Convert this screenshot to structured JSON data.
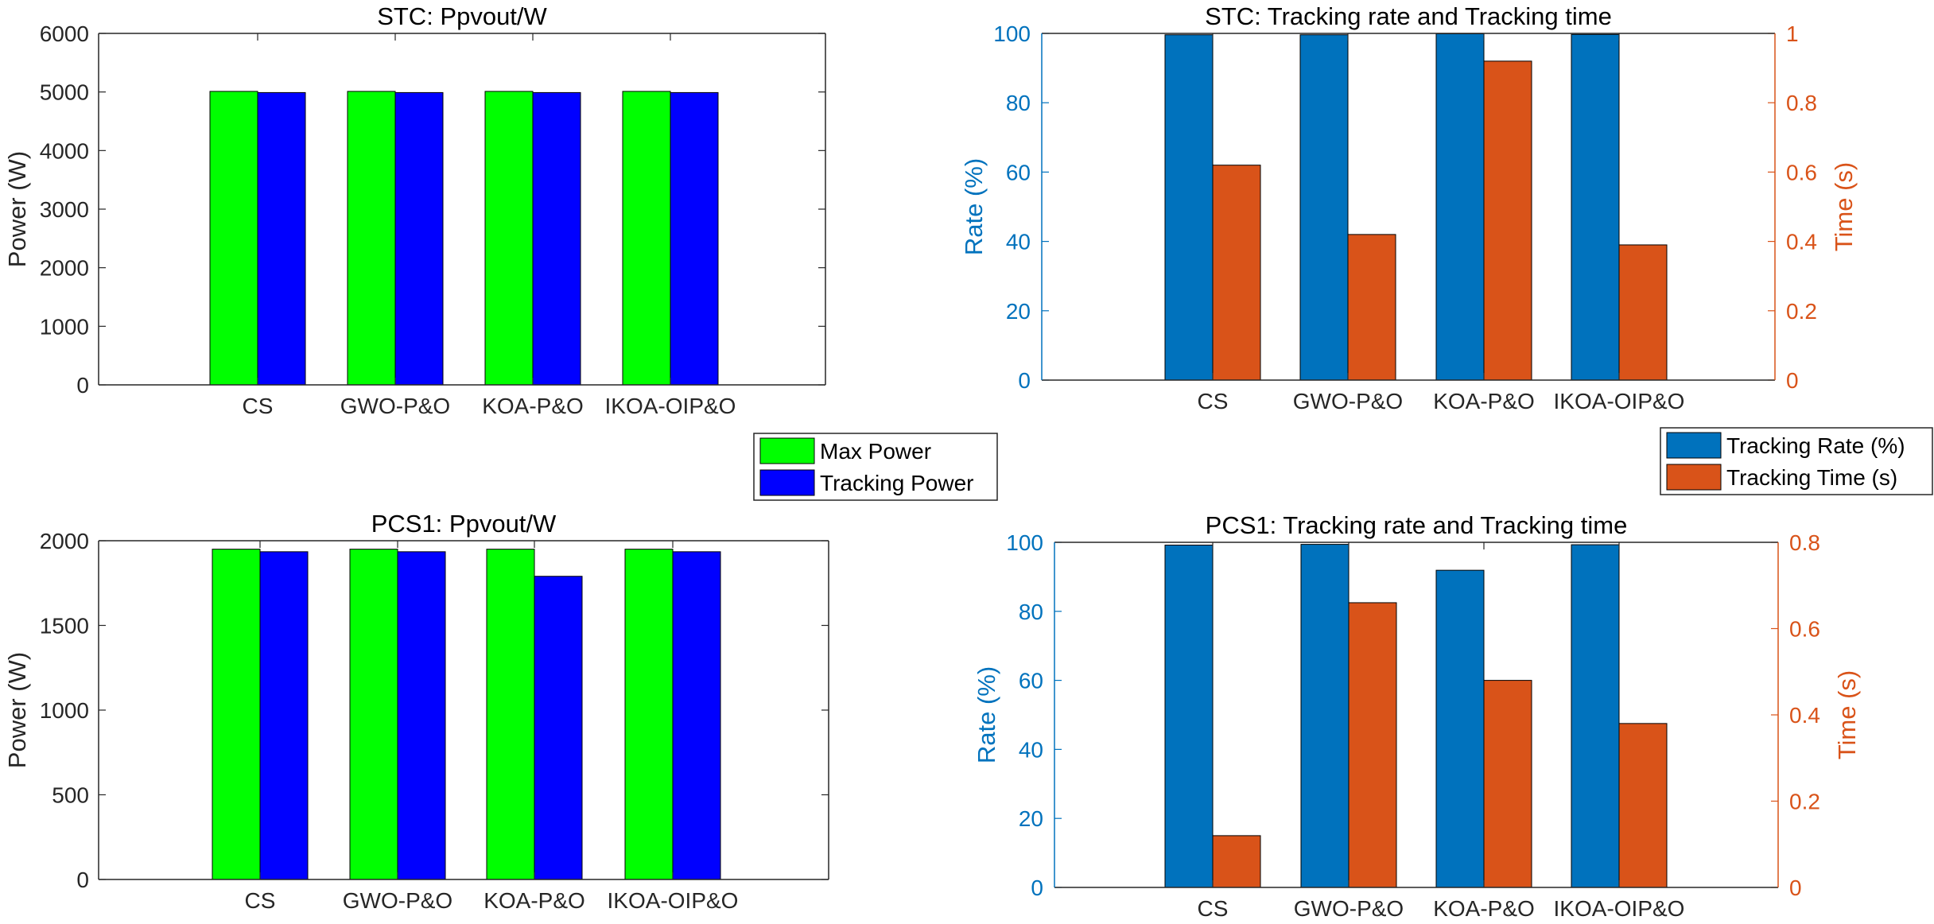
{
  "chart_data": [
    {
      "id": "c1",
      "type": "bar",
      "title": "STC: Ppvout/W",
      "ylabel": "Power (W)",
      "xlabel": "",
      "categories": [
        "CS",
        "GWO-P&O",
        "KOA-P&O",
        "IKOA-OIP&O"
      ],
      "ylim": [
        0,
        6000
      ],
      "yticks": [
        0,
        1000,
        2000,
        3000,
        4000,
        5000,
        6000
      ],
      "series": [
        {
          "name": "Max Power",
          "color": "#00ff00",
          "values": [
            5010,
            5010,
            5010,
            5010
          ]
        },
        {
          "name": "Tracking Power",
          "color": "#0000ff",
          "values": [
            4990,
            4990,
            4990,
            4990
          ]
        }
      ],
      "legend": "bottom-right"
    },
    {
      "id": "c2",
      "type": "bar",
      "title": "STC: Tracking rate and Tracking time",
      "xlabel": "",
      "categories": [
        "CS",
        "GWO-P&O",
        "KOA-P&O",
        "IKOA-OIP&O"
      ],
      "ylabel_left": "Rate (%)",
      "ylabel_right": "Time (s)",
      "ylim_left": [
        0,
        100
      ],
      "yticks_left": [
        0,
        20,
        40,
        60,
        80,
        100
      ],
      "ylim_right": [
        0,
        1
      ],
      "yticks_right": [
        "0",
        "0.2",
        "0.4",
        "0.6",
        "0.8",
        "1"
      ],
      "left_color": "#0072bd",
      "right_color": "#d95319",
      "series": [
        {
          "name": "Tracking Rate (%)",
          "axis": "left",
          "color": "#0072bd",
          "values": [
            99.6,
            99.6,
            99.9,
            99.7
          ]
        },
        {
          "name": "Tracking Time (s)",
          "axis": "right",
          "color": "#d95319",
          "values": [
            0.62,
            0.42,
            0.92,
            0.39
          ]
        }
      ],
      "legend": "bottom-right"
    },
    {
      "id": "c3",
      "type": "bar",
      "title": "PCS1: Ppvout/W",
      "ylabel": "Power (W)",
      "xlabel": "",
      "categories": [
        "CS",
        "GWO-P&O",
        "KOA-P&O",
        "IKOA-OIP&O"
      ],
      "ylim": [
        0,
        2000
      ],
      "yticks": [
        0,
        500,
        1000,
        1500,
        2000
      ],
      "series": [
        {
          "name": "Max Power",
          "color": "#00ff00",
          "values": [
            1950,
            1950,
            1950,
            1950
          ]
        },
        {
          "name": "Tracking Power",
          "color": "#0000ff",
          "values": [
            1935,
            1935,
            1790,
            1935
          ]
        }
      ]
    },
    {
      "id": "c4",
      "type": "bar",
      "title": "PCS1: Tracking rate and Tracking time",
      "xlabel": "",
      "categories": [
        "CS",
        "GWO-P&O",
        "KOA-P&O",
        "IKOA-OIP&O"
      ],
      "ylabel_left": "Rate (%)",
      "ylabel_right": "Time (s)",
      "ylim_left": [
        0,
        100
      ],
      "yticks_left": [
        0,
        20,
        40,
        60,
        80,
        100
      ],
      "ylim_right": [
        0,
        0.8
      ],
      "yticks_right": [
        "0",
        "0.2",
        "0.4",
        "0.6",
        "0.8"
      ],
      "left_color": "#0072bd",
      "right_color": "#d95319",
      "series": [
        {
          "name": "Tracking Rate (%)",
          "axis": "left",
          "color": "#0072bd",
          "values": [
            99.2,
            99.4,
            91.9,
            99.3
          ]
        },
        {
          "name": "Tracking Time (s)",
          "axis": "right",
          "color": "#d95319",
          "values": [
            0.12,
            0.66,
            0.48,
            0.38
          ]
        }
      ]
    }
  ]
}
